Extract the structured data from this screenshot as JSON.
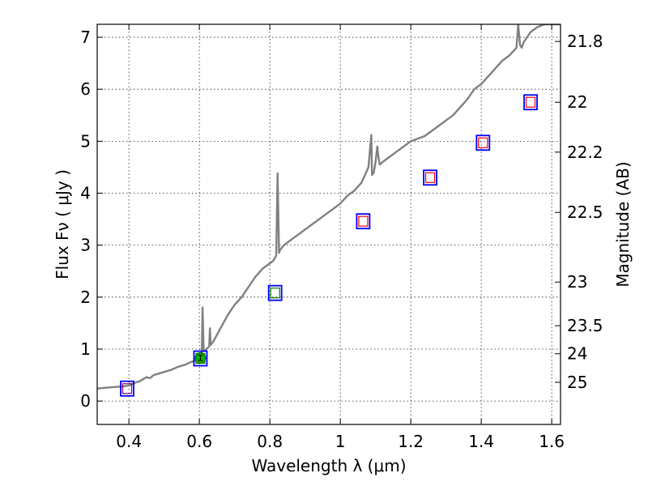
{
  "chart_data": {
    "type": "line",
    "title": "",
    "xlabel": "Wavelength  λ (μm)",
    "ylabel": "Flux  Fν  ( μJy )",
    "ylabel_right": "Magnitude (AB)",
    "xlim": [
      0.31,
      1.625
    ],
    "ylim": [
      -0.45,
      7.25
    ],
    "grid": true,
    "x_ticks": [
      0.4,
      0.6,
      0.8,
      1.0,
      1.2,
      1.4,
      1.6
    ],
    "x_tick_labels": [
      "0.4",
      "0.6",
      "0.8",
      "1",
      "1.2",
      "1.4",
      "1.6"
    ],
    "y_ticks": [
      0,
      1,
      2,
      3,
      4,
      5,
      6,
      7
    ],
    "y_tick_labels": [
      "0",
      "1",
      "2",
      "3",
      "4",
      "5",
      "6",
      "7"
    ],
    "right_ticks": [
      {
        "label": "21.8",
        "flux": 6.92
      },
      {
        "label": "22",
        "flux": 5.75
      },
      {
        "label": "22.2",
        "flux": 4.79
      },
      {
        "label": "22.5",
        "flux": 3.63
      },
      {
        "label": "23",
        "flux": 2.29
      },
      {
        "label": "23.5",
        "flux": 1.45
      },
      {
        "label": "24",
        "flux": 0.91
      },
      {
        "label": "25",
        "flux": 0.36
      }
    ],
    "series": [
      {
        "name": "model spectrum",
        "color": "#808080",
        "x": [
          0.31,
          0.34,
          0.36,
          0.38,
          0.4,
          0.41,
          0.42,
          0.43,
          0.44,
          0.45,
          0.46,
          0.47,
          0.48,
          0.5,
          0.52,
          0.54,
          0.56,
          0.58,
          0.595,
          0.605,
          0.607,
          0.609,
          0.612,
          0.62,
          0.628,
          0.63,
          0.632,
          0.64,
          0.66,
          0.68,
          0.7,
          0.72,
          0.74,
          0.76,
          0.78,
          0.8,
          0.81,
          0.818,
          0.822,
          0.826,
          0.828,
          0.831,
          0.834,
          0.84,
          0.86,
          0.88,
          0.9,
          0.92,
          0.94,
          0.96,
          0.98,
          1.0,
          1.02,
          1.04,
          1.06,
          1.07,
          1.08,
          1.088,
          1.09,
          1.095,
          1.1,
          1.105,
          1.108,
          1.112,
          1.12,
          1.14,
          1.16,
          1.18,
          1.2,
          1.22,
          1.24,
          1.26,
          1.28,
          1.3,
          1.32,
          1.34,
          1.36,
          1.38,
          1.4,
          1.42,
          1.44,
          1.46,
          1.48,
          1.5,
          1.505,
          1.51,
          1.515,
          1.52,
          1.53,
          1.54,
          1.56,
          1.58,
          1.6,
          1.625
        ],
        "y": [
          0.24,
          0.26,
          0.27,
          0.28,
          0.3,
          0.33,
          0.36,
          0.38,
          0.42,
          0.46,
          0.44,
          0.5,
          0.52,
          0.56,
          0.6,
          0.66,
          0.7,
          0.76,
          0.8,
          0.86,
          0.95,
          1.8,
          0.96,
          1.0,
          1.05,
          1.4,
          1.08,
          1.15,
          1.4,
          1.65,
          1.85,
          2.0,
          2.2,
          2.4,
          2.55,
          2.65,
          2.7,
          2.8,
          4.38,
          2.85,
          2.9,
          2.92,
          2.95,
          3.0,
          3.1,
          3.2,
          3.3,
          3.4,
          3.5,
          3.6,
          3.7,
          3.8,
          3.95,
          4.05,
          4.2,
          4.35,
          4.5,
          5.12,
          4.35,
          4.4,
          4.6,
          4.9,
          4.7,
          4.55,
          4.6,
          4.7,
          4.8,
          4.9,
          5.0,
          5.05,
          5.1,
          5.2,
          5.3,
          5.4,
          5.5,
          5.65,
          5.8,
          6.0,
          6.1,
          6.25,
          6.4,
          6.55,
          6.65,
          6.8,
          7.25,
          6.85,
          6.8,
          6.9,
          7.0,
          7.1,
          7.2,
          7.25,
          7.25,
          7.25
        ]
      }
    ],
    "photometry": [
      {
        "name": "observed bands (blue squares)",
        "color": "#0000ff",
        "points": [
          {
            "x": 0.395,
            "y": 0.24
          },
          {
            "x": 0.603,
            "y": 0.82
          },
          {
            "x": 0.815,
            "y": 2.08
          },
          {
            "x": 1.065,
            "y": 3.46
          },
          {
            "x": 1.255,
            "y": 4.3
          },
          {
            "x": 1.405,
            "y": 4.97
          },
          {
            "x": 1.54,
            "y": 5.75
          }
        ]
      },
      {
        "name": "model fluxes (small squares)",
        "points": [
          {
            "x": 0.395,
            "y": 0.24,
            "color": "#800080"
          },
          {
            "x": 0.603,
            "y": 0.82,
            "color": "#008000"
          },
          {
            "x": 0.815,
            "y": 2.08,
            "color": "#008000"
          },
          {
            "x": 1.065,
            "y": 3.46,
            "color": "#ff0000"
          },
          {
            "x": 1.255,
            "y": 4.3,
            "color": "#ff0000"
          },
          {
            "x": 1.405,
            "y": 4.97,
            "color": "#ff0000"
          },
          {
            "x": 1.54,
            "y": 5.75,
            "color": "#ff0000"
          }
        ]
      },
      {
        "name": "measured flux (green circle)",
        "color": "#00c000",
        "points": [
          {
            "x": 0.603,
            "y": 0.83,
            "yerr": 0.05
          }
        ]
      }
    ]
  }
}
